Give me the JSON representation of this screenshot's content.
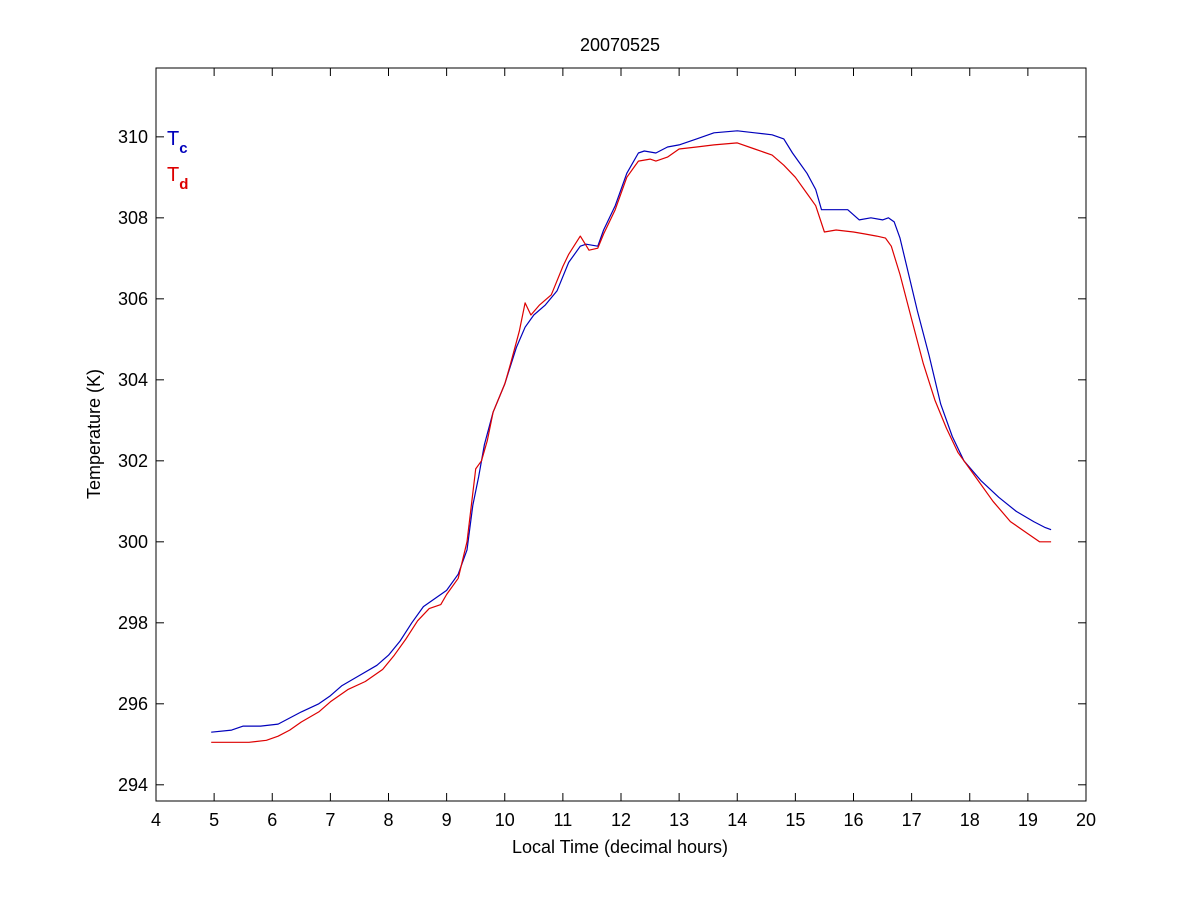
{
  "chart_data": {
    "type": "line",
    "title": "20070525",
    "xlabel": "Local Time (decimal hours)",
    "ylabel": "Temperature (K)",
    "xlim": [
      4,
      20
    ],
    "ylim": [
      293.6,
      311.7
    ],
    "xticks": [
      4,
      5,
      6,
      7,
      8,
      9,
      10,
      11,
      12,
      13,
      14,
      15,
      16,
      17,
      18,
      19,
      20
    ],
    "yticks": [
      294,
      296,
      298,
      300,
      302,
      304,
      306,
      308,
      310
    ],
    "grid": false,
    "legend_position": "top-left",
    "series": [
      {
        "name": "T",
        "subscript": "c",
        "color": "#0000bb",
        "x": [
          4.95,
          5.3,
          5.5,
          5.8,
          6.1,
          6.3,
          6.5,
          6.8,
          7.0,
          7.2,
          7.5,
          7.8,
          8.0,
          8.2,
          8.4,
          8.6,
          8.8,
          9.0,
          9.2,
          9.35,
          9.45,
          9.55,
          9.65,
          9.8,
          10.0,
          10.2,
          10.35,
          10.5,
          10.7,
          10.9,
          11.1,
          11.3,
          11.4,
          11.6,
          11.7,
          11.9,
          12.1,
          12.3,
          12.4,
          12.6,
          12.8,
          13.0,
          13.3,
          13.6,
          14.0,
          14.3,
          14.6,
          14.8,
          14.95,
          15.05,
          15.2,
          15.35,
          15.45,
          15.6,
          15.9,
          16.1,
          16.3,
          16.5,
          16.6,
          16.7,
          16.8,
          16.9,
          17.1,
          17.3,
          17.5,
          17.7,
          17.9,
          18.2,
          18.5,
          18.8,
          19.1,
          19.3,
          19.4
        ],
        "y": [
          295.3,
          295.35,
          295.45,
          295.45,
          295.5,
          295.65,
          295.8,
          296.0,
          296.2,
          296.45,
          296.7,
          296.95,
          297.2,
          297.55,
          298.0,
          298.4,
          298.6,
          298.8,
          299.2,
          299.8,
          300.9,
          301.6,
          302.4,
          303.2,
          303.9,
          304.8,
          305.3,
          305.6,
          305.85,
          306.2,
          306.9,
          307.3,
          307.35,
          307.3,
          307.7,
          308.3,
          309.1,
          309.6,
          309.65,
          309.6,
          309.75,
          309.8,
          309.95,
          310.1,
          310.15,
          310.1,
          310.05,
          309.95,
          309.6,
          309.4,
          309.1,
          308.7,
          308.2,
          308.2,
          308.2,
          307.95,
          308.0,
          307.95,
          308.0,
          307.9,
          307.5,
          306.9,
          305.7,
          304.6,
          303.4,
          302.6,
          302.0,
          301.5,
          301.1,
          300.75,
          300.5,
          300.35,
          300.3
        ]
      },
      {
        "name": "T",
        "subscript": "d",
        "color": "#dd0000",
        "x": [
          4.95,
          5.3,
          5.6,
          5.9,
          6.1,
          6.3,
          6.5,
          6.8,
          7.0,
          7.3,
          7.6,
          7.9,
          8.1,
          8.3,
          8.5,
          8.7,
          8.9,
          9.0,
          9.2,
          9.35,
          9.5,
          9.6,
          9.7,
          9.8,
          10.0,
          10.1,
          10.25,
          10.35,
          10.45,
          10.6,
          10.8,
          11.0,
          11.1,
          11.3,
          11.45,
          11.6,
          11.7,
          11.9,
          12.1,
          12.3,
          12.5,
          12.6,
          12.8,
          13.0,
          13.3,
          13.6,
          14.0,
          14.3,
          14.6,
          14.8,
          15.0,
          15.2,
          15.35,
          15.5,
          15.7,
          16.0,
          16.2,
          16.4,
          16.55,
          16.65,
          16.8,
          17.0,
          17.2,
          17.4,
          17.6,
          17.8,
          18.1,
          18.4,
          18.7,
          19.0,
          19.2,
          19.4
        ],
        "y": [
          295.05,
          295.05,
          295.05,
          295.1,
          295.2,
          295.35,
          295.55,
          295.8,
          296.05,
          296.35,
          296.55,
          296.85,
          297.2,
          297.6,
          298.05,
          298.35,
          298.45,
          298.7,
          299.1,
          300.0,
          301.8,
          302.0,
          302.5,
          303.2,
          303.9,
          304.4,
          305.2,
          305.9,
          305.6,
          305.85,
          306.1,
          306.8,
          307.1,
          307.55,
          307.2,
          307.25,
          307.6,
          308.2,
          309.0,
          309.4,
          309.45,
          309.4,
          309.5,
          309.7,
          309.75,
          309.8,
          309.85,
          309.7,
          309.55,
          309.3,
          309.0,
          308.6,
          308.3,
          307.65,
          307.7,
          307.65,
          307.6,
          307.55,
          307.5,
          307.3,
          306.6,
          305.5,
          304.4,
          303.5,
          302.8,
          302.2,
          301.6,
          301.0,
          300.5,
          300.2,
          300.0,
          300.0
        ]
      }
    ]
  }
}
